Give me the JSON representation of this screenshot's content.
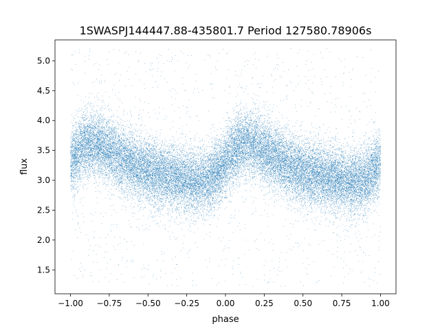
{
  "chart_data": {
    "type": "scatter",
    "title": "1SWASPJ144447.88-435801.7 Period 127580.78906s",
    "xlabel": "phase",
    "ylabel": "flux",
    "xlim": [
      -1.1,
      1.1
    ],
    "ylim": [
      1.1,
      5.35
    ],
    "x_ticks": [
      -1.0,
      -0.75,
      -0.5,
      -0.25,
      0.0,
      0.25,
      0.5,
      0.75,
      1.0
    ],
    "x_tick_labels": [
      "−1.00",
      "−0.75",
      "−0.50",
      "−0.25",
      "0.00",
      "0.25",
      "0.50",
      "0.75",
      "1.00"
    ],
    "y_ticks": [
      1.5,
      2.0,
      2.5,
      3.0,
      3.5,
      4.0,
      4.5,
      5.0
    ],
    "y_tick_labels": [
      "1.5",
      "2.0",
      "2.5",
      "3.0",
      "3.5",
      "4.0",
      "4.5",
      "5.0"
    ],
    "grid": false,
    "marker_color": "#1f77b4",
    "series": [
      {
        "x": [
          -1.0,
          -0.9,
          -0.8,
          -0.7,
          -0.6,
          -0.5,
          -0.4,
          -0.3,
          -0.2,
          -0.1,
          0.0,
          0.1,
          0.2,
          0.3,
          0.4,
          0.5,
          0.6,
          0.7,
          0.8,
          0.9,
          1.0
        ],
        "values": [
          3.32,
          3.62,
          3.58,
          3.42,
          3.26,
          3.14,
          3.08,
          3.02,
          2.98,
          3.0,
          3.3,
          3.62,
          3.58,
          3.42,
          3.26,
          3.14,
          3.08,
          3.02,
          2.98,
          3.0,
          3.3
        ],
        "spread": 0.27,
        "x_range": [
          -1.0,
          1.0
        ],
        "point_count": 30000
      }
    ]
  }
}
